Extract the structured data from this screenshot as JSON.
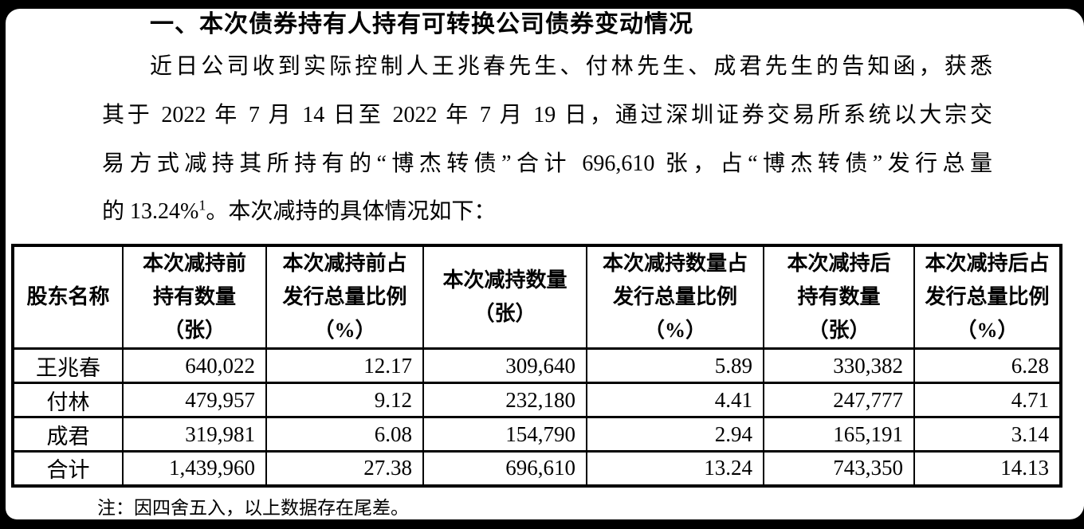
{
  "heading": "一、本次债券持有人持有可转换公司债券变动情况",
  "paragraph": {
    "line1": "近日公司收到实际控制人王兆春先生、付林先生、成君先生的告知函，获悉",
    "line2": "其于 2022 年 7 月 14 日至 2022 年 7 月 19 日，通过深圳证券交易所系统以大宗交",
    "line3": "易方式减持其所持有的“博杰转债”合计 696,610 张，占“博杰转债”发行总量",
    "line4_pre": "的 13.24%",
    "line4_sup": "1",
    "line4_post": "。本次减持的具体情况如下："
  },
  "table": {
    "columns": [
      {
        "id": "shareholder-name",
        "lines": [
          "股东名称"
        ]
      },
      {
        "id": "pre-reduction-holding",
        "lines": [
          "本次减持前",
          "持有数量",
          "（张）"
        ]
      },
      {
        "id": "pre-reduction-ratio",
        "lines": [
          "本次减持前占",
          "发行总量比例",
          "（%）"
        ]
      },
      {
        "id": "reduction-quantity",
        "lines": [
          "本次减持数量",
          "（张）"
        ]
      },
      {
        "id": "reduction-ratio",
        "lines": [
          "本次减持数量占",
          "发行总量比例",
          "（%）"
        ]
      },
      {
        "id": "post-reduction-holding",
        "lines": [
          "本次减持后",
          "持有数量",
          "（张）"
        ]
      },
      {
        "id": "post-reduction-ratio",
        "lines": [
          "本次减持后占",
          "发行总量比例",
          "（%）"
        ]
      }
    ],
    "rows": [
      [
        "王兆春",
        "640,022",
        "12.17",
        "309,640",
        "5.89",
        "330,382",
        "6.28"
      ],
      [
        "付林",
        "479,957",
        "9.12",
        "232,180",
        "4.41",
        "247,777",
        "4.71"
      ],
      [
        "成君",
        "319,981",
        "6.08",
        "154,790",
        "2.94",
        "165,191",
        "3.14"
      ],
      [
        "合计",
        "1,439,960",
        "27.38",
        "696,610",
        "13.24",
        "743,350",
        "14.13"
      ]
    ]
  },
  "note": "注：因四舍五入，以上数据存在尾差。"
}
